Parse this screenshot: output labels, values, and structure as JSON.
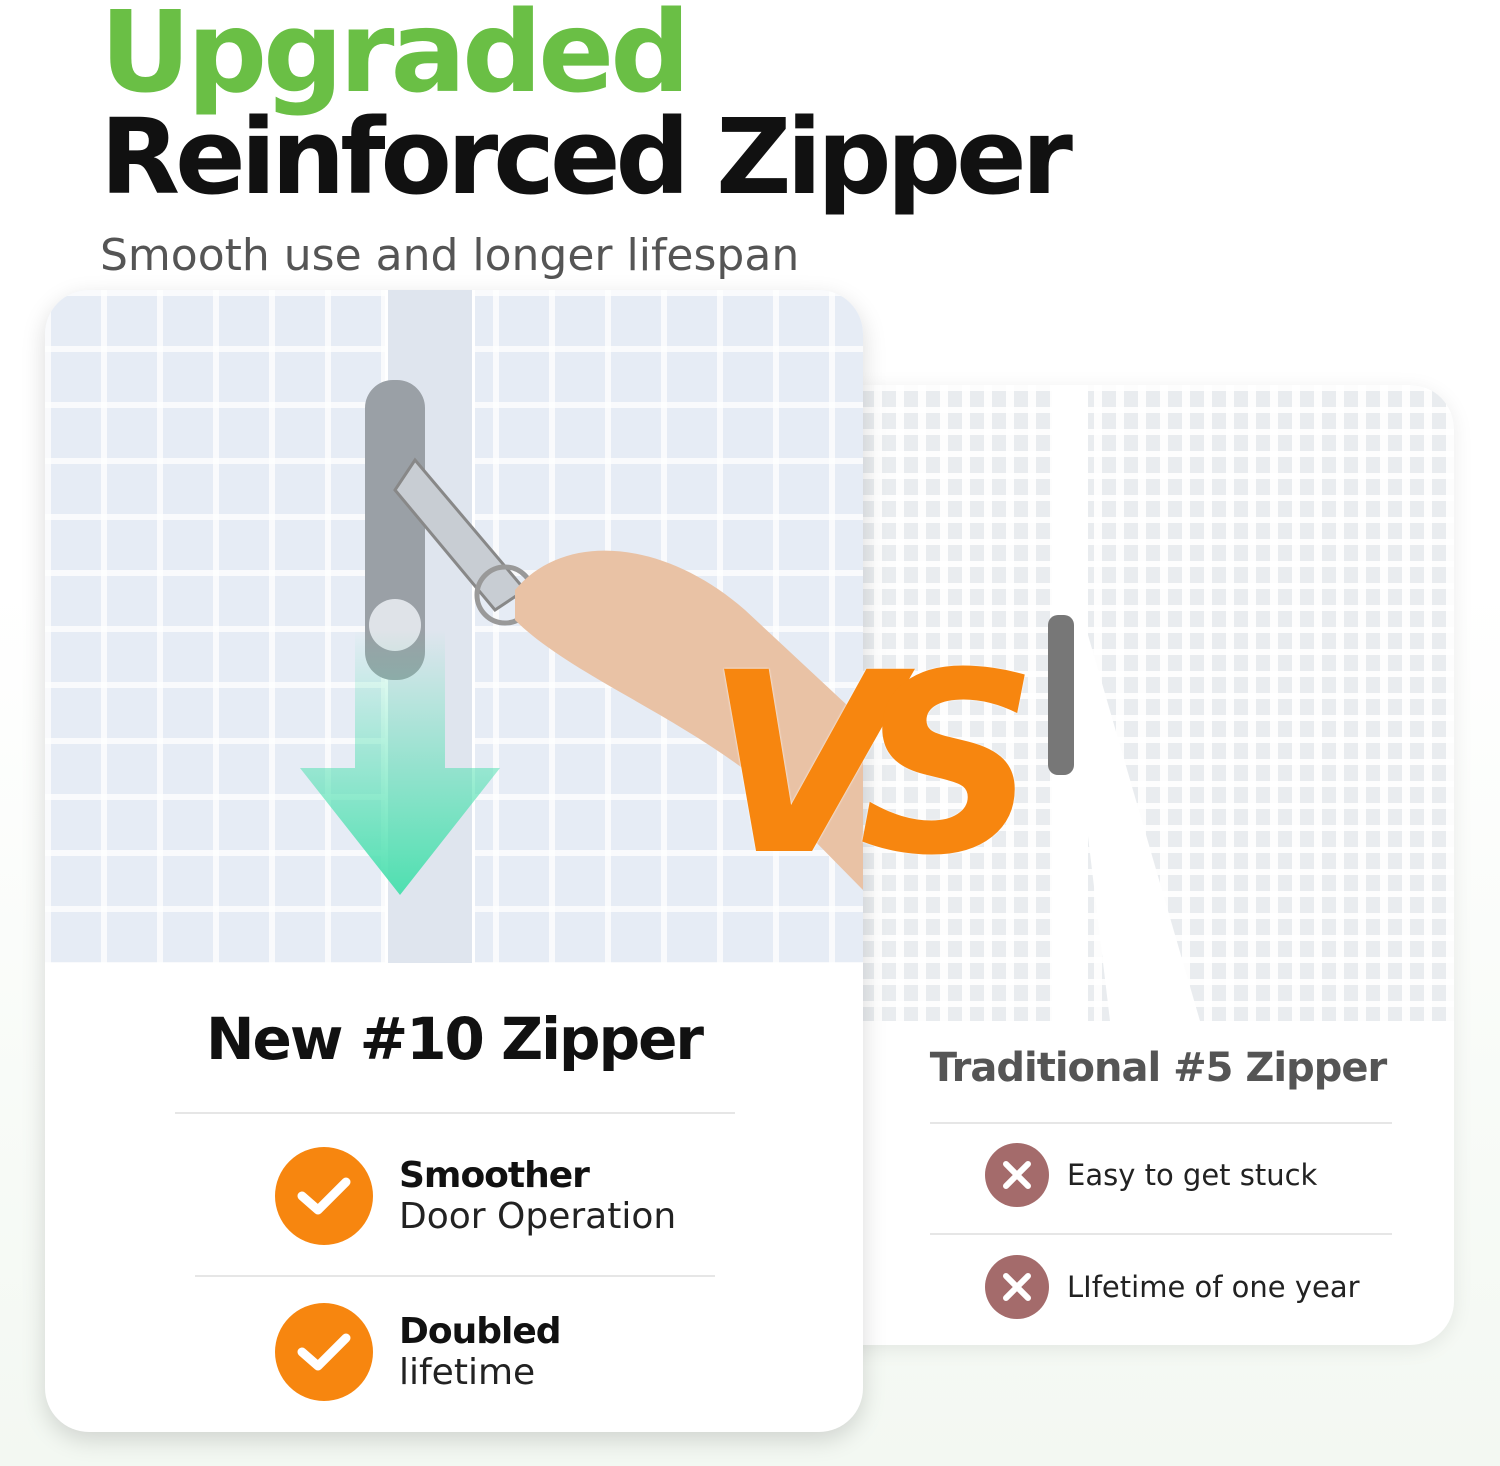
{
  "header": {
    "title_line1": "Upgraded",
    "title_line2": "Reinforced Zipper",
    "subtitle": "Smooth use and longer lifespan"
  },
  "colors": {
    "green": "#6abf45",
    "orange": "#f7860f",
    "cross": "#a46b6b",
    "arrow": "#4fe0b0"
  },
  "new_card": {
    "title": "New #10 Zipper",
    "features": [
      {
        "bold": "Smoother",
        "regular": "Door Operation",
        "icon": "check-icon"
      },
      {
        "bold": "Doubled",
        "regular": "lifetime",
        "icon": "check-icon"
      }
    ]
  },
  "vs_label": "VS",
  "old_card": {
    "title": "Traditional #5 Zipper",
    "features": [
      {
        "text": "Easy to get stuck",
        "icon": "x-icon"
      },
      {
        "text": "LIfetime of one year",
        "icon": "x-icon"
      }
    ]
  }
}
